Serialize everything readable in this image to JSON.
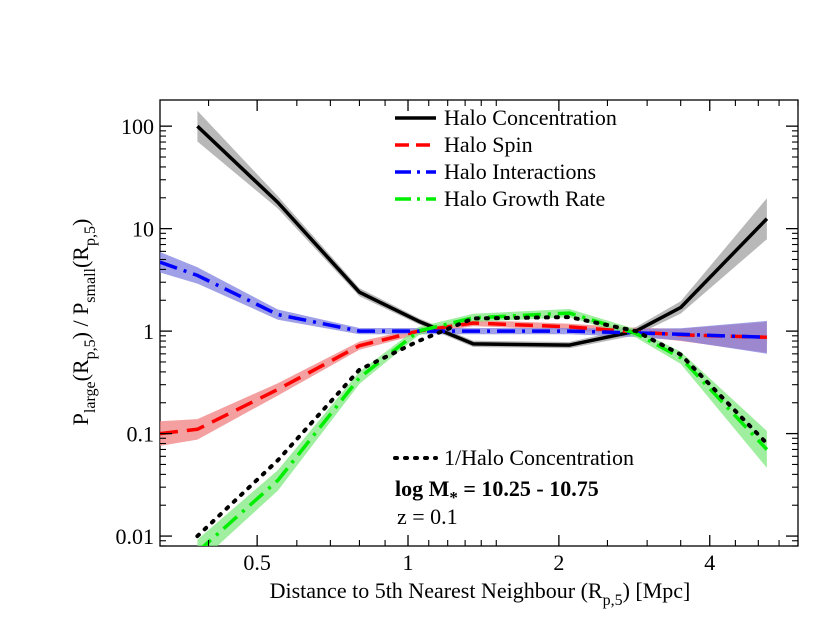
{
  "chart_data": {
    "type": "line",
    "xlabel": "Distance to 5th Nearest Neighbour (R",
    "xlabel_sub": "p,5",
    "xlabel_end": ") [Mpc]",
    "ylabel": {
      "p1": "P",
      "s1": "large",
      "p2": "(R",
      "s2": "p,5",
      "p3": ") / P",
      "s3": "small",
      "p4": "(R",
      "s4": "p,5",
      "p5": ")"
    },
    "x_scale": "log",
    "y_scale": "log",
    "xlim": [
      0.32,
      6.0
    ],
    "ylim": [
      0.008,
      180
    ],
    "x_ticks": [
      {
        "value": 0.5,
        "label": "0.5"
      },
      {
        "value": 1,
        "label": "1"
      },
      {
        "value": 2,
        "label": "2"
      },
      {
        "value": 4,
        "label": "4"
      }
    ],
    "y_ticks": [
      {
        "value": 0.01,
        "label": "0.01"
      },
      {
        "value": 0.1,
        "label": "0.1"
      },
      {
        "value": 1,
        "label": "1"
      },
      {
        "value": 10,
        "label": "10"
      },
      {
        "value": 100,
        "label": "100"
      }
    ],
    "series": [
      {
        "name": "Halo Concentration",
        "color": "#000000",
        "band_color": "#a0a0a0",
        "dash": "solid",
        "x": [
          0.38,
          0.55,
          0.8,
          1.05,
          1.35,
          2.1,
          2.85,
          3.5,
          5.2
        ],
        "y": [
          100,
          18,
          2.4,
          1.25,
          0.75,
          0.73,
          1.0,
          1.7,
          12.5
        ],
        "band": [
          0.15,
          0.06,
          0.04,
          0.03,
          0.03,
          0.03,
          0.04,
          0.06,
          0.2
        ]
      },
      {
        "name": "Halo Spin",
        "color": "#ff0000",
        "band_color": "#f08080",
        "dash": "dashed",
        "x": [
          0.32,
          0.38,
          0.55,
          0.8,
          1.05,
          1.35,
          2.1,
          2.85,
          3.5,
          5.2
        ],
        "y": [
          0.1,
          0.11,
          0.27,
          0.72,
          1.0,
          1.2,
          1.1,
          0.98,
          0.92,
          0.87
        ],
        "band": [
          0.12,
          0.1,
          0.06,
          0.04,
          0.03,
          0.03,
          0.03,
          0.04,
          0.06,
          0.15
        ]
      },
      {
        "name": "Halo Interactions",
        "color": "#0000ff",
        "band_color": "#8080e0",
        "dash": "dashdot",
        "x": [
          0.32,
          0.38,
          0.55,
          0.8,
          1.05,
          1.35,
          2.1,
          2.85,
          3.5,
          5.2
        ],
        "y": [
          4.7,
          3.5,
          1.45,
          1.0,
          1.0,
          1.0,
          1.0,
          0.96,
          0.93,
          0.87
        ],
        "band": [
          0.1,
          0.08,
          0.05,
          0.03,
          0.03,
          0.03,
          0.03,
          0.04,
          0.06,
          0.16
        ]
      },
      {
        "name": "Halo Growth Rate",
        "color": "#00ee00",
        "band_color": "#80e880",
        "dash": "dashdot",
        "x": [
          0.38,
          0.55,
          0.8,
          1.05,
          1.35,
          2.1,
          2.85,
          3.5,
          5.2
        ],
        "y": [
          0.007,
          0.035,
          0.35,
          1.0,
          1.35,
          1.5,
          0.95,
          0.55,
          0.07
        ],
        "band": [
          0.12,
          0.1,
          0.06,
          0.04,
          0.04,
          0.04,
          0.04,
          0.06,
          0.18
        ]
      },
      {
        "name": "1/Halo Concentration",
        "color": "#000000",
        "dash": "dotted",
        "x": [
          0.38,
          0.55,
          0.8,
          1.05,
          1.35,
          2.1,
          2.85,
          3.5,
          5.2
        ],
        "y": [
          0.01,
          0.055,
          0.42,
          0.8,
          1.33,
          1.37,
          1.0,
          0.59,
          0.08
        ]
      }
    ],
    "legend": [
      {
        "label": "Halo Concentration",
        "color": "#000000",
        "dash": "solid"
      },
      {
        "label": "Halo Spin",
        "color": "#ff0000",
        "dash": "dashed"
      },
      {
        "label": "Halo Interactions",
        "color": "#0000ff",
        "dash": "dashdot"
      },
      {
        "label": "Halo Growth Rate",
        "color": "#00ee00",
        "dash": "dashdot"
      }
    ],
    "annotations": {
      "inv_label": "1/Halo Concentration",
      "mass_label_a": "log M",
      "mass_label_sub": "*",
      "mass_label_b": " = 10.25 - 10.75",
      "redshift": "z = 0.1"
    }
  }
}
